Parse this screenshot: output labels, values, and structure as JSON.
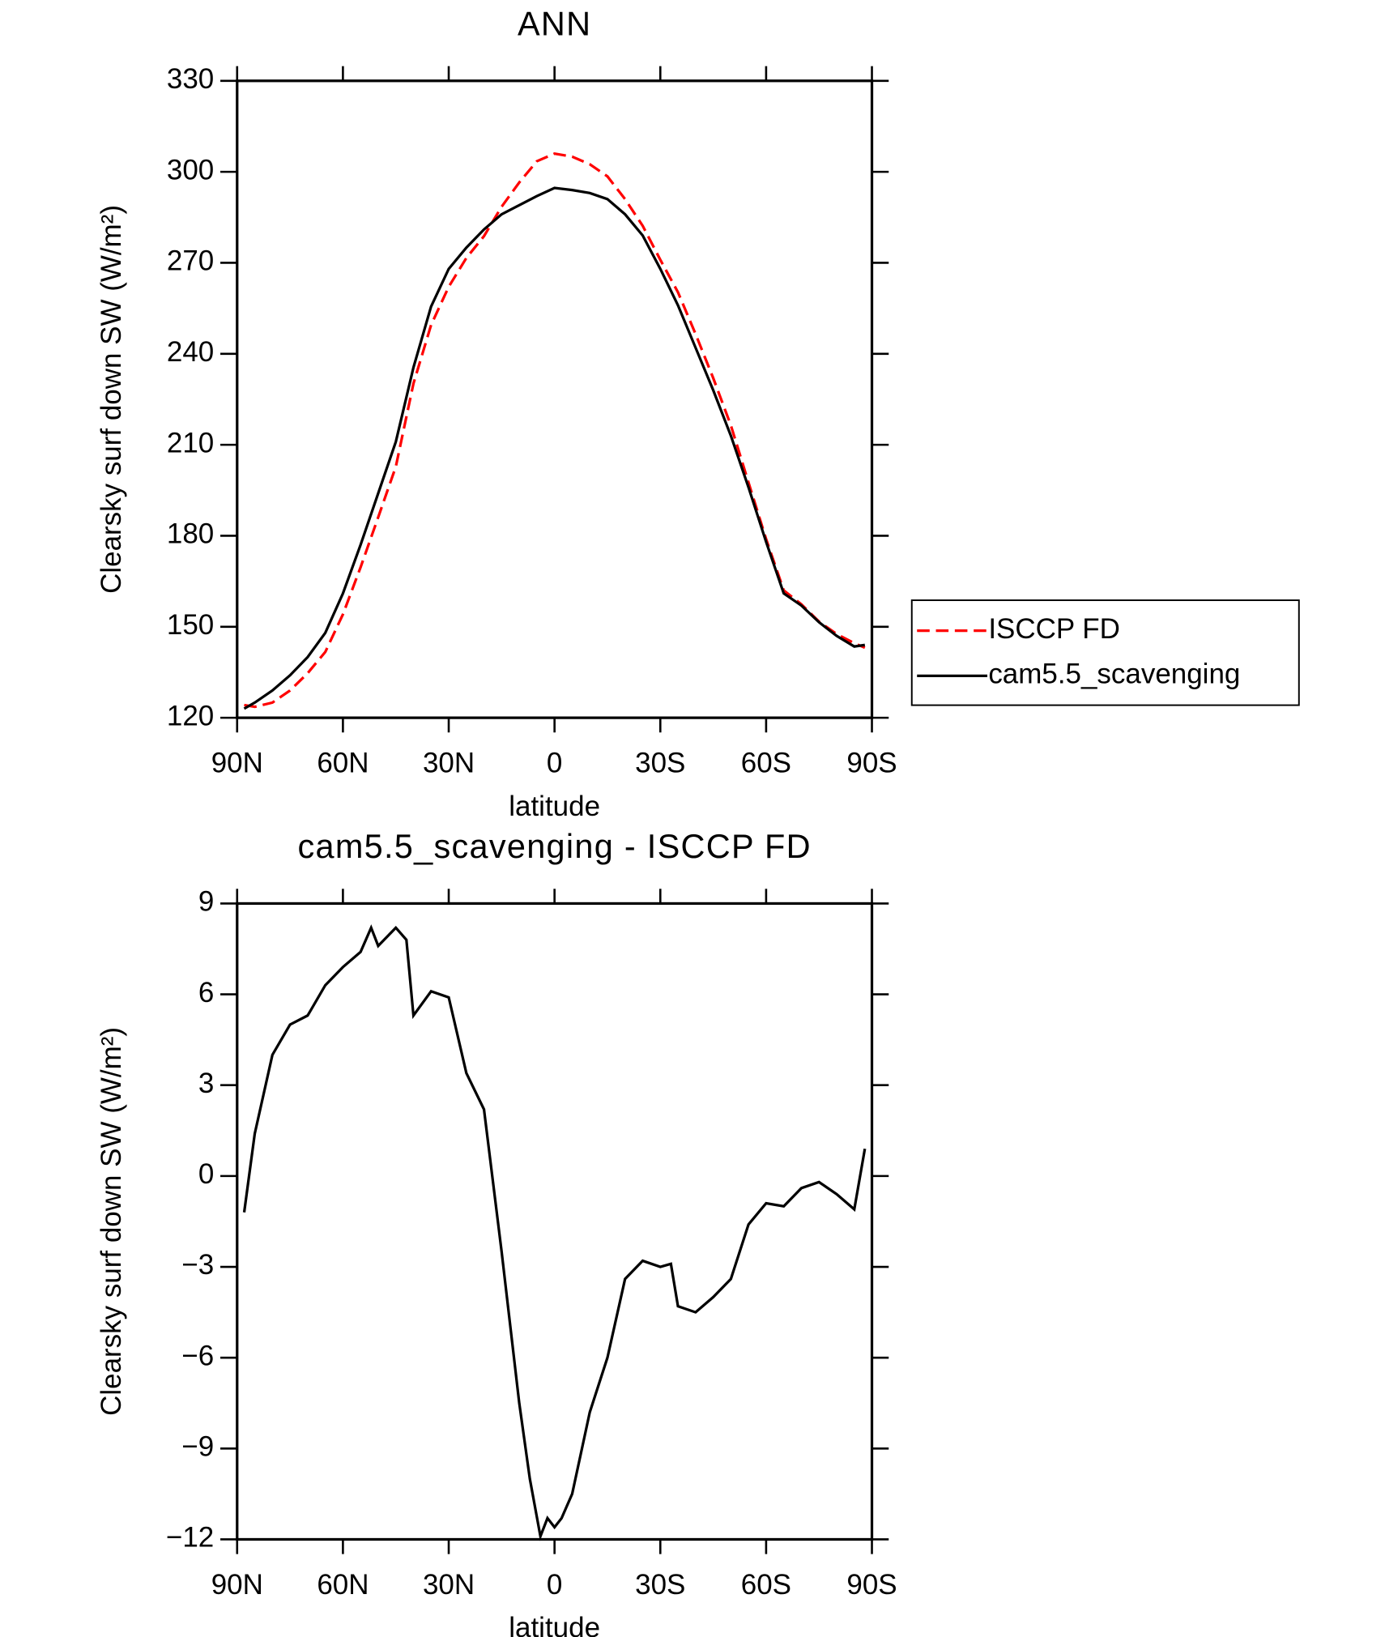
{
  "chart_data": [
    {
      "type": "line",
      "title": "ANN",
      "xlabel": "latitude",
      "ylabel": "Clearsky surf down SW (W/m²)",
      "x": [
        88,
        85,
        80,
        75,
        70,
        65,
        60,
        55,
        50,
        45,
        40,
        35,
        30,
        25,
        20,
        15,
        10,
        5,
        0,
        -5,
        -10,
        -15,
        -20,
        -25,
        -30,
        -35,
        -40,
        -45,
        -50,
        -55,
        -60,
        -65,
        -70,
        -75,
        -80,
        -85,
        -88
      ],
      "series": [
        {
          "name": "ISCCP FD",
          "color": "#ff0000",
          "dash": true,
          "values": [
            124.2,
            123.6,
            125,
            129,
            134.7,
            141.7,
            154.1,
            169.6,
            186.1,
            202.8,
            230.2,
            249.5,
            262.1,
            271.6,
            278.8,
            288.5,
            296.5,
            303.5,
            306,
            305,
            302.5,
            298.5,
            291,
            282.2,
            271,
            260.3,
            246.5,
            232,
            216.4,
            197.6,
            178.9,
            162,
            157.4,
            151.7,
            147.6,
            144.6,
            143.1
          ]
        },
        {
          "name": "cam5.5_scavenging",
          "color": "#000000",
          "dash": false,
          "values": [
            123,
            125,
            129,
            134,
            140,
            148,
            161,
            177,
            194,
            211,
            235.5,
            255.6,
            268,
            275,
            281,
            286,
            289,
            292,
            294.7,
            294,
            293,
            291,
            286,
            279,
            268,
            256,
            242,
            228,
            213,
            196,
            178,
            161,
            157,
            151.5,
            147,
            143.5,
            144
          ]
        }
      ],
      "xlim": [
        90,
        -90
      ],
      "xticks": [
        {
          "value": 90,
          "label": "90N"
        },
        {
          "value": 60,
          "label": "60N"
        },
        {
          "value": 30,
          "label": "30N"
        },
        0,
        {
          "value": -30,
          "label": "30S"
        },
        {
          "value": -60,
          "label": "60S"
        },
        {
          "value": -90,
          "label": "90S"
        }
      ],
      "ylim": [
        120,
        330
      ],
      "yticks": [
        120,
        150,
        180,
        210,
        240,
        270,
        300,
        330
      ],
      "legend": "right"
    },
    {
      "type": "line",
      "title": "cam5.5_scavenging - ISCCP FD",
      "xlabel": "latitude",
      "ylabel": "Clearsky surf down SW (W/m²)",
      "x": [
        88,
        85,
        80,
        75,
        70,
        65,
        60,
        55,
        52,
        50,
        45,
        42,
        40,
        35,
        30,
        25,
        20,
        15,
        10,
        7,
        4,
        2,
        0,
        -2,
        -5,
        -10,
        -15,
        -20,
        -25,
        -30,
        -33,
        -35,
        -40,
        -45,
        -50,
        -55,
        -60,
        -65,
        -70,
        -75,
        -80,
        -85,
        -88
      ],
      "color": "#000000",
      "values": [
        -1.2,
        1.4,
        4.0,
        5.0,
        5.3,
        6.3,
        6.9,
        7.4,
        8.2,
        7.6,
        8.2,
        7.8,
        5.3,
        6.1,
        5.9,
        3.4,
        2.2,
        -2.5,
        -7.5,
        -10.0,
        -11.9,
        -11.3,
        -11.6,
        -11.3,
        -10.5,
        -7.8,
        -6.0,
        -3.4,
        -2.8,
        -3.0,
        -2.9,
        -4.3,
        -4.5,
        -4.0,
        -3.4,
        -1.6,
        -0.9,
        -1.0,
        -0.4,
        -0.2,
        -0.6,
        -1.1,
        0.9
      ],
      "xlim": [
        90,
        -90
      ],
      "xticks": [
        {
          "value": 90,
          "label": "90N"
        },
        {
          "value": 60,
          "label": "60N"
        },
        {
          "value": 30,
          "label": "30N"
        },
        0,
        {
          "value": -30,
          "label": "30S"
        },
        {
          "value": -60,
          "label": "60S"
        },
        {
          "value": -90,
          "label": "90S"
        }
      ],
      "ylim": [
        -12,
        9
      ],
      "yticks": [
        {
          "value": -12,
          "label": "−12"
        },
        {
          "value": -9,
          "label": "−9"
        },
        {
          "value": -6,
          "label": "−6"
        },
        {
          "value": -3,
          "label": "−3"
        },
        0,
        3,
        6,
        9
      ]
    }
  ]
}
